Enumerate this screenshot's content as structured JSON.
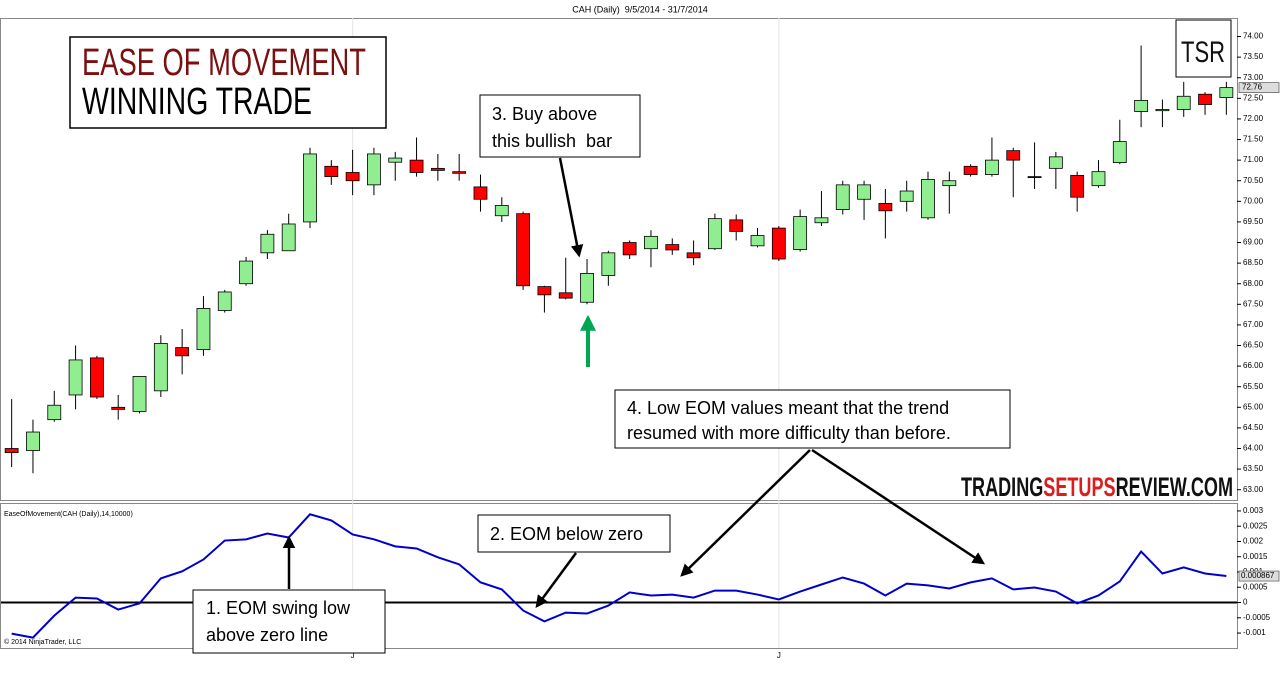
{
  "chart_data": [
    {
      "type": "candlestick",
      "title": "CAH (Daily)  9/5/2014 - 31/7/2014",
      "categories": [
        null,
        null,
        null,
        null,
        null,
        null,
        null,
        null,
        null,
        null,
        null,
        null,
        null,
        null,
        null,
        null,
        "J",
        null,
        null,
        null,
        null,
        null,
        null,
        null,
        null,
        null,
        null,
        null,
        null,
        null,
        null,
        null,
        null,
        null,
        null,
        null,
        "J",
        null,
        null,
        null,
        null,
        null,
        null,
        null,
        null,
        null,
        null,
        null,
        null,
        null,
        null,
        null,
        null,
        null,
        null,
        null,
        null,
        null
      ],
      "open": [
        64.0,
        63.95,
        64.7,
        65.3,
        66.2,
        65.0,
        64.9,
        65.4,
        66.45,
        66.4,
        67.35,
        68.0,
        68.75,
        68.8,
        69.5,
        70.85,
        70.7,
        70.4,
        70.95,
        71.0,
        70.8,
        70.72,
        70.35,
        69.65,
        69.7,
        67.93,
        67.78,
        67.55,
        68.2,
        69.0,
        68.85,
        68.95,
        68.75,
        68.85,
        69.55,
        68.92,
        69.35,
        68.83,
        69.48,
        69.8,
        70.05,
        69.95,
        70.0,
        69.6,
        70.38,
        70.85,
        70.65,
        71.23,
        70.6,
        70.8,
        70.63,
        70.38,
        70.94,
        72.18,
        72.2,
        72.23,
        72.6,
        72.52
      ],
      "high": [
        65.2,
        64.7,
        65.4,
        66.5,
        66.25,
        65.3,
        65.75,
        66.75,
        66.9,
        67.7,
        67.85,
        68.65,
        69.3,
        69.7,
        71.3,
        71.0,
        71.25,
        71.3,
        71.2,
        71.55,
        71.15,
        71.15,
        70.65,
        70.1,
        69.75,
        67.95,
        68.63,
        68.6,
        68.8,
        69.05,
        69.3,
        69.1,
        69.05,
        69.7,
        69.68,
        69.35,
        69.4,
        69.8,
        70.25,
        70.5,
        70.5,
        70.3,
        70.5,
        70.72,
        70.72,
        70.9,
        71.55,
        71.3,
        71.43,
        71.2,
        70.72,
        71.0,
        71.98,
        73.78,
        72.47,
        72.9,
        72.65,
        72.9
      ],
      "low": [
        63.55,
        63.4,
        64.65,
        64.95,
        65.2,
        64.7,
        64.85,
        65.25,
        65.8,
        66.25,
        67.3,
        67.95,
        68.6,
        68.8,
        69.35,
        70.4,
        70.15,
        70.15,
        70.5,
        70.6,
        70.5,
        70.5,
        69.75,
        69.5,
        67.85,
        67.3,
        67.62,
        67.5,
        67.95,
        68.6,
        68.4,
        68.7,
        68.45,
        68.82,
        69.05,
        68.88,
        68.55,
        68.78,
        69.4,
        69.68,
        69.55,
        69.1,
        69.75,
        69.55,
        69.7,
        70.6,
        70.6,
        70.1,
        70.3,
        70.3,
        69.75,
        70.33,
        70.9,
        71.8,
        71.8,
        72.05,
        72.1,
        72.1
      ],
      "close": [
        63.9,
        64.4,
        65.05,
        66.15,
        65.25,
        64.95,
        65.75,
        66.55,
        66.25,
        67.4,
        67.8,
        68.55,
        69.2,
        69.45,
        71.15,
        70.6,
        70.5,
        71.15,
        71.05,
        70.7,
        70.75,
        70.68,
        70.05,
        69.9,
        67.95,
        67.73,
        67.65,
        68.25,
        68.75,
        68.7,
        69.15,
        68.82,
        68.63,
        69.58,
        69.27,
        69.17,
        68.6,
        69.63,
        69.6,
        70.4,
        70.4,
        69.77,
        70.25,
        70.53,
        70.5,
        70.65,
        71.0,
        71.0,
        70.58,
        71.08,
        70.1,
        70.72,
        71.45,
        72.45,
        72.23,
        72.55,
        72.35,
        72.76
      ],
      "up_color": "#90ee90",
      "down_color": "#ff0000",
      "ylim": [
        62.75,
        74.45
      ],
      "yticks": [
        {
          "value": 74,
          "label": "74.00"
        },
        {
          "value": 73.5,
          "label": "73.50"
        },
        {
          "value": 73,
          "label": "73.00"
        },
        {
          "value": 72.5,
          "label": "72.50"
        },
        {
          "value": 72,
          "label": "72.00"
        },
        {
          "value": 71.5,
          "label": "71.50"
        },
        {
          "value": 71,
          "label": "71.00"
        },
        {
          "value": 70.5,
          "label": "70.50"
        },
        {
          "value": 70,
          "label": "70.00"
        },
        {
          "value": 69.5,
          "label": "69.50"
        },
        {
          "value": 69,
          "label": "69.00"
        },
        {
          "value": 68.5,
          "label": "68.50"
        },
        {
          "value": 68,
          "label": "68.00"
        },
        {
          "value": 67.5,
          "label": "67.50"
        },
        {
          "value": 67,
          "label": "67.00"
        },
        {
          "value": 66.5,
          "label": "66.50"
        },
        {
          "value": 66,
          "label": "66.00"
        },
        {
          "value": 65.5,
          "label": "65.50"
        },
        {
          "value": 65,
          "label": "65.00"
        },
        {
          "value": 64.5,
          "label": "64.50"
        },
        {
          "value": 64,
          "label": "64.00"
        },
        {
          "value": 63.5,
          "label": "63.50"
        },
        {
          "value": 63,
          "label": "63.00"
        }
      ]
    },
    {
      "type": "line",
      "series": [
        {
          "name": "EaseOfMovement(CAH (Daily),14,10000)",
          "color": "#0000cc",
          "values": [
            -0.00102,
            -0.00115,
            -0.00043,
            0.00016,
            0.00013,
            -0.00023,
            -3e-05,
            0.00079,
            0.00102,
            0.00141,
            0.00203,
            0.00207,
            0.00226,
            0.00213,
            0.00289,
            0.00269,
            0.00223,
            0.00207,
            0.00184,
            0.00177,
            0.00148,
            0.00125,
            0.00066,
            0.00043,
            -0.00026,
            -0.00062,
            -0.00033,
            -0.00036,
            -0.0001,
            0.00033,
            0.00023,
            0.00026,
            0.00016,
            0.00039,
            0.00039,
            0.00026,
            0.0001,
            0.00036,
            0.00059,
            0.00082,
            0.00062,
            0.00023,
            0.00062,
            0.00056,
            0.00046,
            0.00066,
            0.00079,
            0.00043,
            0.00049,
            0.00036,
            -3e-05,
            0.00023,
            0.00069,
            0.00167,
            0.00095,
            0.00115,
            0.00095,
            0.000867
          ]
        }
      ],
      "reference_line": 0,
      "ylim": [
        -0.00149,
        0.00326
      ],
      "yticks": [
        0.003,
        0.0025,
        0.002,
        0.0015,
        0.001,
        0.0005,
        0,
        -0.0005,
        -0.001
      ],
      "footnote": "© 2014 NinjaTrader, LLC"
    }
  ],
  "callouts": {
    "heading": [
      "EASE OF MOVEMENT",
      "WINNING TRADE"
    ],
    "logo": "TSR",
    "notes": [
      [
        "1. EOM swing low",
        "above zero line"
      ],
      [
        "2. EOM below zero"
      ],
      [
        "3. Buy above",
        "this bullish  bar"
      ],
      [
        "4. Low EOM values meant that the trend",
        "resumed with more difficulty than before."
      ]
    ],
    "website": [
      "TRADING",
      "SETUPS",
      "REVIEW.COM"
    ]
  }
}
